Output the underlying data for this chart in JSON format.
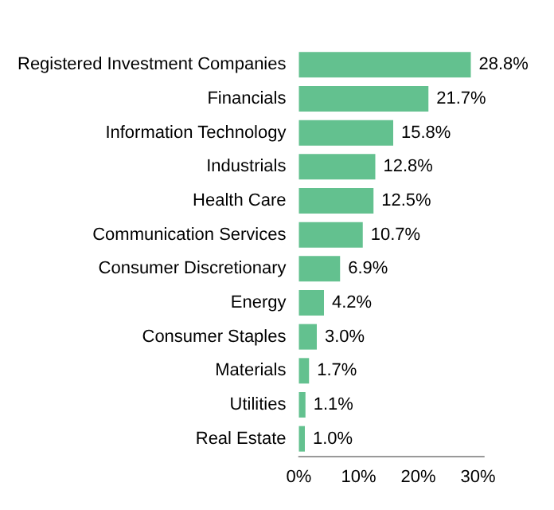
{
  "chart_data": {
    "type": "bar",
    "orientation": "horizontal",
    "categories": [
      "Registered Investment Companies",
      "Financials",
      "Information Technology",
      "Industrials",
      "Health Care",
      "Communication Services",
      "Consumer Discretionary",
      "Energy",
      "Consumer Staples",
      "Materials",
      "Utilities",
      "Real Estate"
    ],
    "values": [
      28.8,
      21.7,
      15.8,
      12.8,
      12.5,
      10.7,
      6.9,
      4.2,
      3.0,
      1.7,
      1.1,
      1.0
    ],
    "value_labels": [
      "28.8%",
      "21.7%",
      "15.8%",
      "12.8%",
      "12.5%",
      "10.7%",
      "6.9%",
      "4.2%",
      "3.0%",
      "1.7%",
      "1.1%",
      "1.0%"
    ],
    "color": "#63c18f",
    "xlim": [
      0,
      31
    ],
    "xticks": [
      {
        "value": 0,
        "label": "0%"
      },
      {
        "value": 10,
        "label": "10%"
      },
      {
        "value": 20,
        "label": "20%"
      },
      {
        "value": 30,
        "label": "30%"
      }
    ],
    "grid": false
  }
}
